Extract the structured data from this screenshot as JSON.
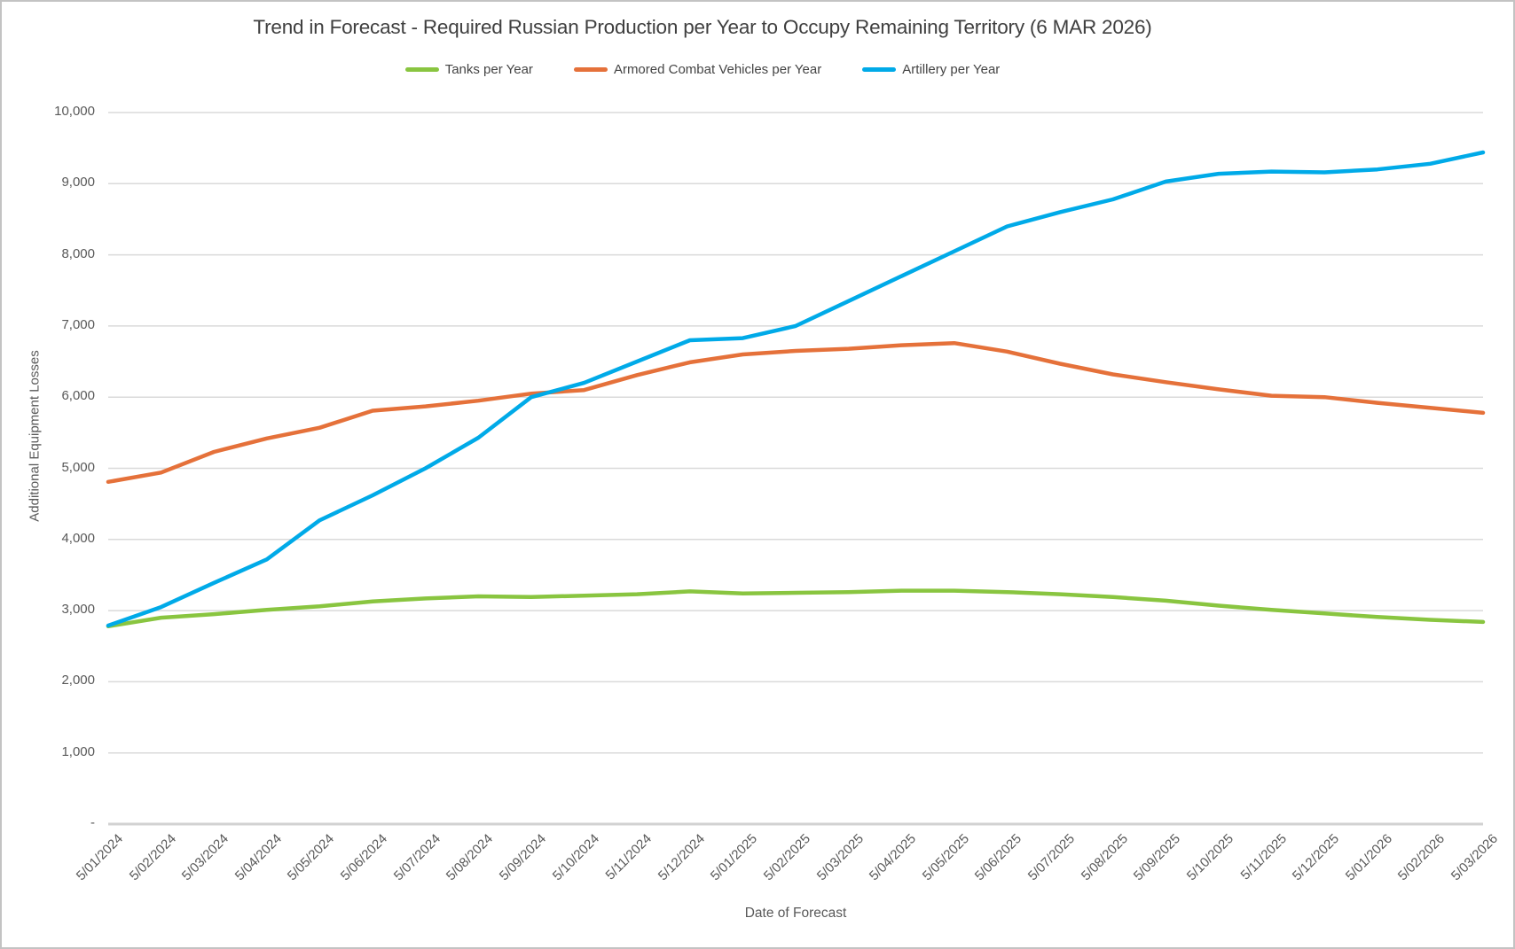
{
  "chart": {
    "title": "Trend in Forecast - Required Russian Production per Year to Occupy Remaining Territory (6 MAR 2026)",
    "x_axis_title": "Date of Forecast",
    "y_axis_title": "Additional Equipment Losses",
    "y_tick_labels": [
      "10,000",
      "9,000",
      "8,000",
      "7,000",
      "6,000",
      "5,000",
      "4,000",
      "3,000",
      "2,000",
      "1,000",
      "-"
    ],
    "colors": {
      "title_text": "#3f3f3f",
      "axis_text": "#595959",
      "gridline": "#dadada",
      "axis_line": "#d2d2d2"
    }
  },
  "chart_data": {
    "type": "line",
    "title": "Trend in Forecast - Required Russian Production per Year to Occupy Remaining Territory (6 MAR 2026)",
    "xlabel": "Date of Forecast",
    "ylabel": "Additional Equipment Losses",
    "ylim": [
      0,
      10000
    ],
    "y_tick_step": 1000,
    "grid": "horizontal",
    "legend_position": "top",
    "categories": [
      "5/01/2024",
      "5/02/2024",
      "5/03/2024",
      "5/04/2024",
      "5/05/2024",
      "5/06/2024",
      "5/07/2024",
      "5/08/2024",
      "5/09/2024",
      "5/10/2024",
      "5/11/2024",
      "5/12/2024",
      "5/01/2025",
      "5/02/2025",
      "5/03/2025",
      "5/04/2025",
      "5/05/2025",
      "5/06/2025",
      "5/07/2025",
      "5/08/2025",
      "5/09/2025",
      "5/10/2025",
      "5/11/2025",
      "5/12/2025",
      "5/01/2026",
      "5/02/2026",
      "5/03/2026"
    ],
    "series": [
      {
        "name": "Tanks per Year",
        "color": "#89c540",
        "values": [
          2780,
          2900,
          2950,
          3010,
          3060,
          3130,
          3170,
          3200,
          3190,
          3210,
          3230,
          3270,
          3240,
          3250,
          3260,
          3280,
          3280,
          3260,
          3230,
          3190,
          3140,
          3070,
          3010,
          2960,
          2910,
          2870,
          2840
        ]
      },
      {
        "name": "Armored Combat Vehicles per Year",
        "color": "#e5713a",
        "values": [
          4810,
          4940,
          5230,
          5420,
          5570,
          5810,
          5870,
          5950,
          6050,
          6100,
          6310,
          6490,
          6600,
          6650,
          6680,
          6730,
          6760,
          6640,
          6470,
          6320,
          6210,
          6110,
          6020,
          6000,
          5920,
          5850,
          5780
        ]
      },
      {
        "name": "Artillery per Year",
        "color": "#00aae8",
        "values": [
          2790,
          3050,
          3390,
          3720,
          4270,
          4620,
          5000,
          5430,
          6000,
          6200,
          6500,
          6800,
          6830,
          7000,
          7350,
          7700,
          8050,
          8400,
          8600,
          8780,
          9030,
          9140,
          9170,
          9160,
          9200,
          9280,
          9440
        ]
      }
    ]
  }
}
